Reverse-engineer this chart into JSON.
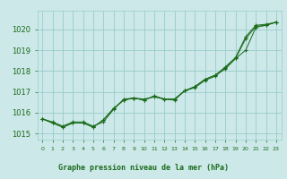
{
  "title": "Graphe pression niveau de la mer (hPa)",
  "bg_color": "#cce8e8",
  "grid_color": "#99cccc",
  "line_color": "#1a6b1a",
  "text_color": "#1a6b1a",
  "xlim": [
    -0.5,
    23.5
  ],
  "ylim": [
    1014.7,
    1020.9
  ],
  "yticks": [
    1015,
    1016,
    1017,
    1018,
    1019,
    1020
  ],
  "xticks": [
    0,
    1,
    2,
    3,
    4,
    5,
    6,
    7,
    8,
    9,
    10,
    11,
    12,
    13,
    14,
    15,
    16,
    17,
    18,
    19,
    20,
    21,
    22,
    23
  ],
  "series1": {
    "x": [
      0,
      1,
      2,
      3,
      4,
      5,
      6,
      7,
      8,
      9,
      10,
      11,
      12,
      13,
      14,
      15,
      16,
      17,
      18,
      19,
      20,
      21,
      22,
      23
    ],
    "y": [
      1015.7,
      1015.55,
      1015.35,
      1015.55,
      1015.55,
      1015.35,
      1015.55,
      1016.15,
      1016.65,
      1016.7,
      1016.65,
      1016.75,
      1016.65,
      1016.6,
      1017.05,
      1017.2,
      1017.55,
      1017.75,
      1018.15,
      1018.6,
      1019.0,
      1020.1,
      1020.2,
      1020.35
    ]
  },
  "series2": {
    "x": [
      0,
      1,
      2,
      3,
      4,
      5,
      6,
      7,
      8,
      9,
      10,
      11,
      12,
      13,
      14,
      15,
      16,
      17,
      18,
      19,
      20,
      21,
      22,
      23
    ],
    "y": [
      1015.7,
      1015.5,
      1015.3,
      1015.5,
      1015.5,
      1015.3,
      1015.65,
      1016.2,
      1016.6,
      1016.7,
      1016.6,
      1016.8,
      1016.65,
      1016.65,
      1017.05,
      1017.25,
      1017.6,
      1017.8,
      1018.1,
      1018.6,
      1019.55,
      1020.15,
      1020.2,
      1020.35
    ]
  },
  "series3": {
    "x": [
      0,
      1,
      2,
      3,
      4,
      5,
      6,
      7,
      8,
      9,
      10,
      11,
      12,
      13,
      14,
      15,
      16,
      17,
      18,
      19,
      20,
      21,
      22,
      23
    ],
    "y": [
      1015.7,
      1015.5,
      1015.3,
      1015.5,
      1015.5,
      1015.3,
      1015.65,
      1016.2,
      1016.6,
      1016.7,
      1016.6,
      1016.8,
      1016.65,
      1016.65,
      1017.05,
      1017.25,
      1017.6,
      1017.8,
      1018.2,
      1018.65,
      1019.65,
      1020.2,
      1020.25,
      1020.35
    ]
  },
  "figsize": [
    3.2,
    2.0
  ],
  "dpi": 100
}
